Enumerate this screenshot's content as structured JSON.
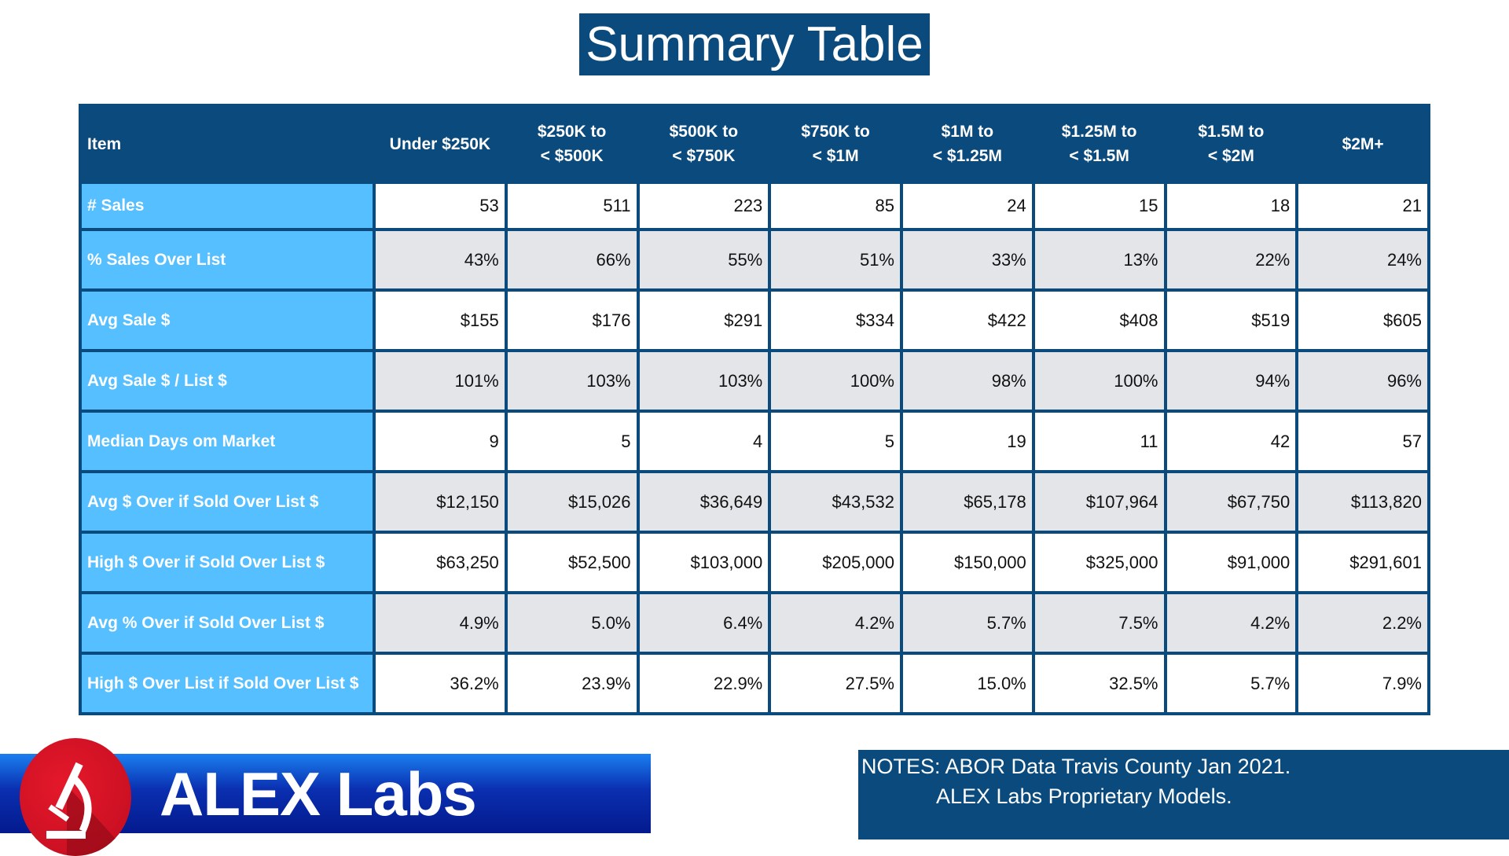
{
  "title": "Summary Table",
  "table": {
    "headers": [
      "Item",
      "Under $250K",
      "$250K to\n< $500K",
      "$500K to\n< $750K",
      "$750K to\n< $1M",
      "$1M to\n< $1.25M",
      "$1.25M to\n< $1.5M",
      "$1.5M to\n< $2M",
      "$2M+"
    ],
    "rows": [
      {
        "label": "# Sales",
        "values": [
          "53",
          "511",
          "223",
          "85",
          "24",
          "15",
          "18",
          "21"
        ]
      },
      {
        "label": "% Sales Over List",
        "values": [
          "43%",
          "66%",
          "55%",
          "51%",
          "33%",
          "13%",
          "22%",
          "24%"
        ]
      },
      {
        "label": "Avg Sale $",
        "values": [
          "$155",
          "$176",
          "$291",
          "$334",
          "$422",
          "$408",
          "$519",
          "$605"
        ]
      },
      {
        "label": "Avg Sale $ / List $",
        "values": [
          "101%",
          "103%",
          "103%",
          "100%",
          "98%",
          "100%",
          "94%",
          "96%"
        ]
      },
      {
        "label": "Median Days om Market",
        "values": [
          "9",
          "5",
          "4",
          "5",
          "19",
          "11",
          "42",
          "57"
        ]
      },
      {
        "label": "Avg $ Over if Sold Over List $",
        "values": [
          "$12,150",
          "$15,026",
          "$36,649",
          "$43,532",
          "$65,178",
          "$107,964",
          "$67,750",
          "$113,820"
        ]
      },
      {
        "label": "High $ Over if Sold Over List $",
        "values": [
          "$63,250",
          "$52,500",
          "$103,000",
          "$205,000",
          "$150,000",
          "$325,000",
          "$91,000",
          "$291,601"
        ]
      },
      {
        "label": "Avg % Over if Sold Over List $",
        "values": [
          "4.9%",
          "5.0%",
          "6.4%",
          "4.2%",
          "5.7%",
          "7.5%",
          "4.2%",
          "2.2%"
        ]
      },
      {
        "label": "High $ Over List if Sold Over List $",
        "values": [
          "36.2%",
          "23.9%",
          "22.9%",
          "27.5%",
          "15.0%",
          "32.5%",
          "5.7%",
          "7.9%"
        ]
      }
    ]
  },
  "logo": {
    "text": "ALEX Labs",
    "icon": "microscope-icon"
  },
  "notes": {
    "line1": "NOTES: ABOR Data Travis County Jan 2021.",
    "line2": "ALEX Labs Proprietary Models."
  },
  "colors": {
    "header": "#0b4a7c",
    "label_cell": "#56bfff",
    "alt_row": "#e3e5e8",
    "logo_red": "#e5182b",
    "banner_blue": "#041a8e"
  }
}
